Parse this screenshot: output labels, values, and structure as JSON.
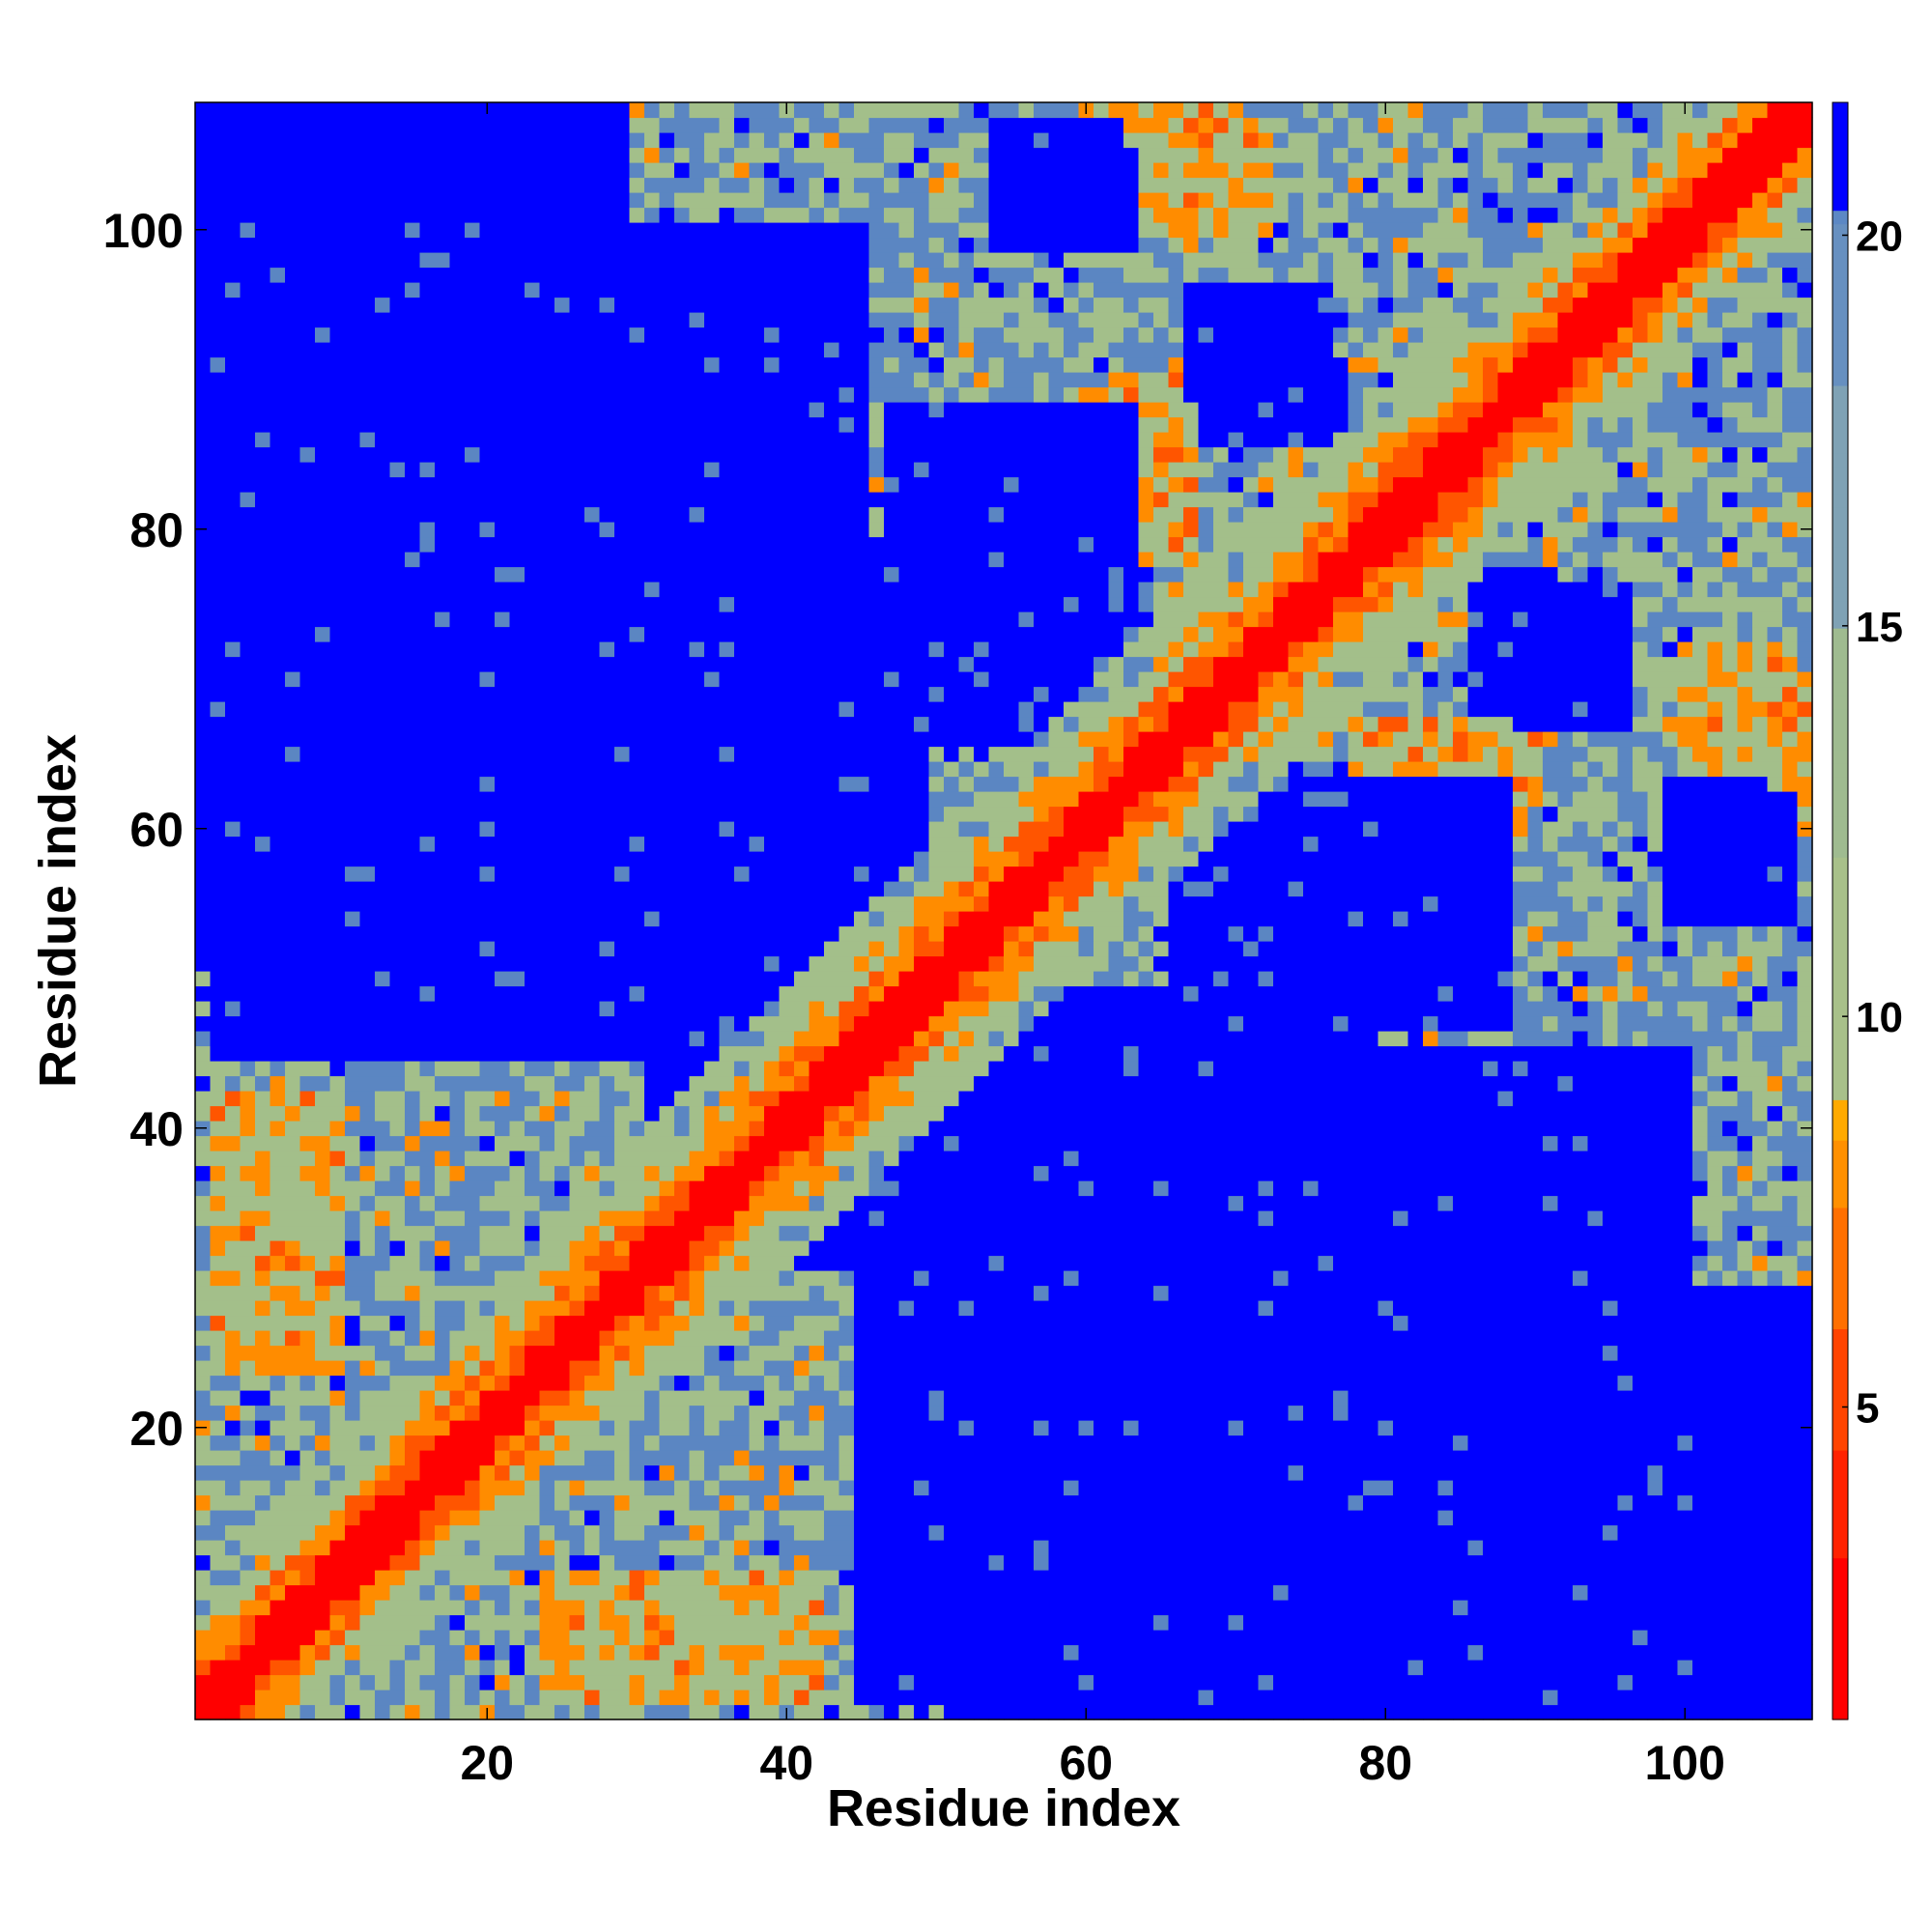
{
  "chart_data": {
    "type": "heatmap",
    "title": "",
    "xlabel": "Residue index",
    "ylabel": "Residue index",
    "n_residues": 108,
    "xlim": [
      1,
      108
    ],
    "ylim": [
      1,
      108
    ],
    "x_ticks": [
      20,
      40,
      60,
      80,
      100
    ],
    "y_ticks": [
      20,
      40,
      60,
      80,
      100
    ],
    "x_tick_labels": [
      "20",
      "40",
      "60",
      "80",
      "100"
    ],
    "y_tick_labels": [
      "20",
      "40",
      "60",
      "80",
      "100"
    ],
    "colorbar": {
      "min": 1,
      "max": 21.7,
      "ticks": [
        5,
        10,
        15,
        20
      ],
      "tick_labels": [
        "5",
        "10",
        "15",
        "20"
      ],
      "saturation_color": "#0000ff"
    },
    "colors": {
      "diagonal": "#ff0000",
      "near_contact": "#ff5500",
      "contact": "#ff8c00",
      "mid": "#a3bf8a",
      "far": "#5b86c2",
      "beyond": "#0000ff"
    },
    "structure": {
      "blue_regions": [
        {
          "x": [
            2,
            45
          ],
          "y": [
            56,
            100
          ]
        },
        {
          "x": [
            45,
            100
          ],
          "y": [
            2,
            42
          ]
        },
        {
          "x": [
            53,
            63
          ],
          "y": [
            66,
            80
          ]
        },
        {
          "x": [
            66,
            88
          ],
          "y": [
            47,
            63
          ]
        },
        {
          "x": [
            89,
            96
          ],
          "y": [
            67,
            76
          ]
        },
        {
          "x": [
            100,
            107
          ],
          "y": [
            54,
            62
          ]
        },
        {
          "x": [
            54,
            63
          ],
          "y": [
            99,
            105
          ]
        },
        {
          "x": [
            68,
            77
          ],
          "y": [
            86,
            91
          ]
        }
      ],
      "contact_bands": [
        {
          "x": [
            62,
            67
          ],
          "y": [
            78,
            90
          ]
        },
        {
          "x": [
            82,
            88
          ],
          "y": [
            58,
            64
          ]
        },
        {
          "x": [
            2,
            10
          ],
          "y": [
            24,
            42
          ]
        },
        {
          "x": [
            24,
            42
          ],
          "y": [
            2,
            10
          ]
        },
        {
          "x": [
            102,
            108
          ],
          "y": [
            60,
            70
          ]
        },
        {
          "x": [
            64,
            72
          ],
          "y": [
            100,
            107
          ]
        }
      ],
      "far_regions": [
        {
          "x": [
            1,
            30
          ],
          "y": [
            1,
            50
          ]
        },
        {
          "x": [
            1,
            45
          ],
          "y": [
            1,
            25
          ]
        },
        {
          "x": [
            50,
            108
          ],
          "y": [
            62,
            108
          ]
        },
        {
          "x": [
            55,
            108
          ],
          "y": [
            50,
            108
          ]
        },
        {
          "x": [
            80,
            108
          ],
          "y": [
            38,
            108
          ]
        },
        {
          "x": [
            30,
            80
          ],
          "y": [
            90,
            108
          ]
        }
      ]
    }
  }
}
